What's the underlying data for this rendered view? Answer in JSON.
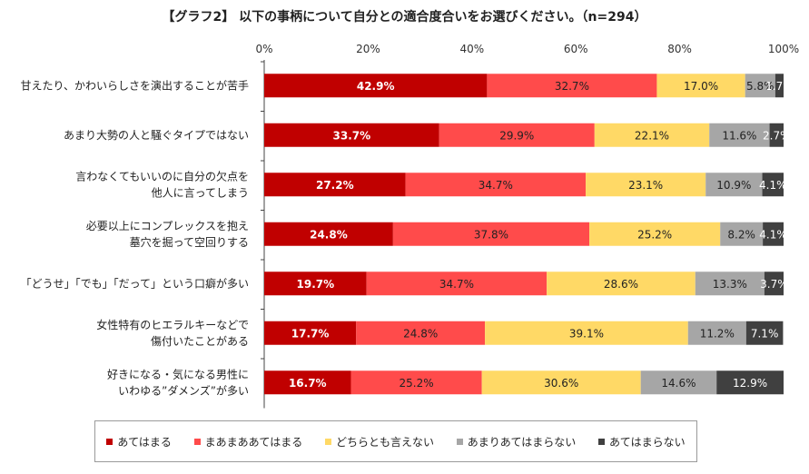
{
  "chart_data": {
    "type": "bar",
    "orientation": "horizontal-stacked-100",
    "title": "【グラフ2】 以下の事柄について自分との適合度合いをお選びください。（n=294）",
    "xlim": [
      0,
      100
    ],
    "xticks": [
      "0%",
      "20%",
      "40%",
      "60%",
      "80%",
      "100%"
    ],
    "grid": false,
    "legend_position": "bottom",
    "categories": [
      [
        "甘えたり、かわいらしさを演出することが苦手"
      ],
      [
        "あまり大勢の人と騒ぐタイプではない"
      ],
      [
        "言わなくてもいいのに自分の欠点を",
        "他人に言ってしまう"
      ],
      [
        "必要以上にコンプレックスを抱え",
        "墓穴を掘って空回りする"
      ],
      [
        "「どうせ」「でも」「だって」という口癖が多い"
      ],
      [
        "女性特有のヒエラルキーなどで",
        "傷付いたことがある"
      ],
      [
        "好きになる・気になる男性に",
        "いわゆる”ダメンズ”が多い"
      ]
    ],
    "series": [
      {
        "name": "あてはまる",
        "color": "#c00000",
        "label_color": "#ffffff",
        "label_bold": true,
        "values": [
          42.9,
          33.7,
          27.2,
          24.8,
          19.7,
          17.7,
          16.7
        ]
      },
      {
        "name": "まあまああてはまる",
        "color": "#ff4b4b",
        "label_color": "#222222",
        "label_bold": false,
        "values": [
          32.7,
          29.9,
          34.7,
          37.8,
          34.7,
          24.8,
          25.2
        ]
      },
      {
        "name": "どちらとも言えない",
        "color": "#ffd966",
        "label_color": "#222222",
        "label_bold": false,
        "values": [
          17.0,
          22.1,
          23.1,
          25.2,
          28.6,
          39.1,
          30.6
        ]
      },
      {
        "name": "あまりあてはまらない",
        "color": "#a6a6a6",
        "label_color": "#222222",
        "label_bold": false,
        "values": [
          5.8,
          11.6,
          10.9,
          8.2,
          13.3,
          11.2,
          14.6
        ]
      },
      {
        "name": "あてはまらない",
        "color": "#404040",
        "label_color": "#ffffff",
        "label_bold": false,
        "values": [
          1.7,
          2.7,
          4.1,
          4.1,
          3.7,
          7.1,
          12.9
        ]
      }
    ],
    "unit": "%"
  }
}
